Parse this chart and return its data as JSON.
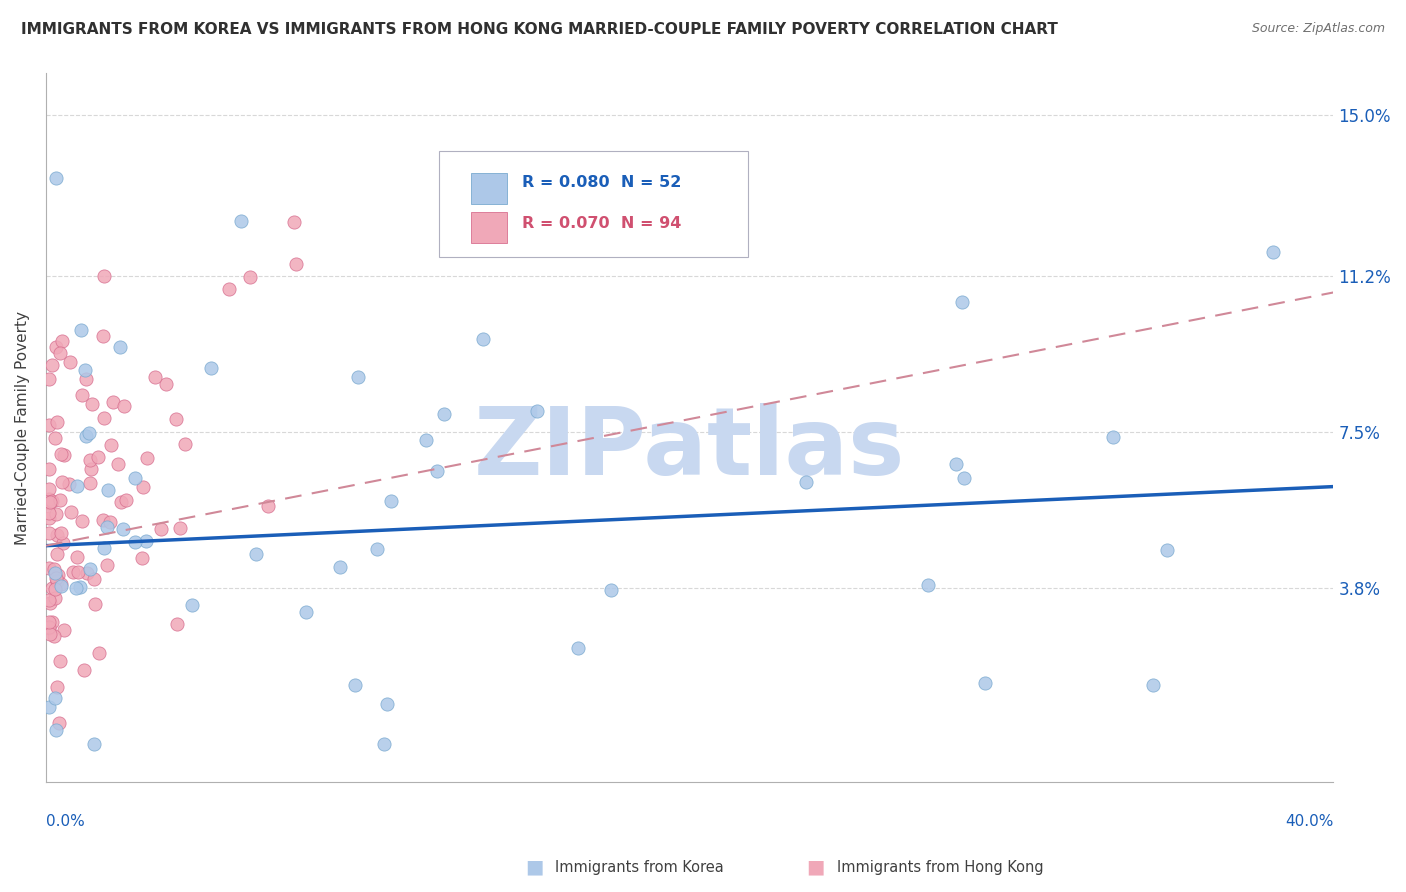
{
  "title": "IMMIGRANTS FROM KOREA VS IMMIGRANTS FROM HONG KONG MARRIED-COUPLE FAMILY POVERTY CORRELATION CHART",
  "source": "Source: ZipAtlas.com",
  "ylabel": "Married-Couple Family Poverty",
  "xlim": [
    0.0,
    0.4
  ],
  "ylim": [
    -0.008,
    0.16
  ],
  "korea_R": 0.08,
  "korea_N": 52,
  "hk_R": 0.07,
  "hk_N": 94,
  "korea_color": "#adc8e8",
  "korea_edge_color": "#7aaad0",
  "hk_color": "#f0a8b8",
  "hk_edge_color": "#d87090",
  "korea_trend_color": "#1a5eb8",
  "hk_trend_color": "#d08898",
  "korea_trend_start_y": 0.048,
  "korea_trend_end_y": 0.062,
  "hk_trend_start_y": 0.048,
  "hk_trend_end_y": 0.108,
  "watermark": "ZIPatlas",
  "watermark_color": "#c8d8f0",
  "background_color": "#ffffff",
  "grid_color": "#d8d8d8",
  "title_color": "#303030",
  "axis_label_color": "#1a5eb8",
  "ytick_vals": [
    0.038,
    0.075,
    0.112,
    0.15
  ],
  "ytick_labels": [
    "3.8%",
    "7.5%",
    "11.2%",
    "15.0%"
  ],
  "legend_korea_label": "R = 0.080  N = 52",
  "legend_hk_label": "R = 0.070  N = 94",
  "bottom_legend_korea": "Immigrants from Korea",
  "bottom_legend_hk": "Immigrants from Hong Kong"
}
